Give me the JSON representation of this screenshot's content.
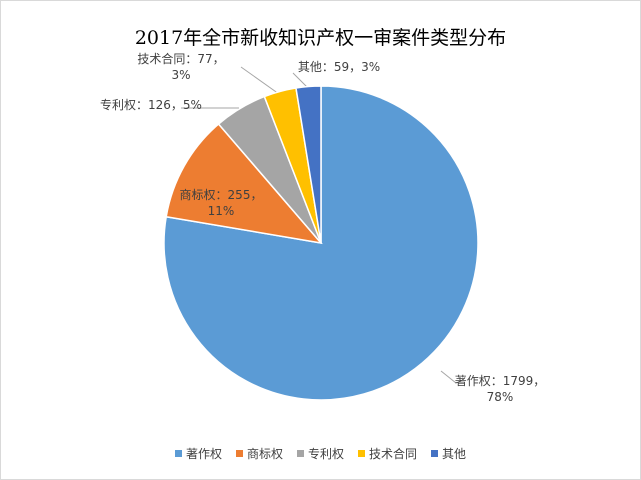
{
  "chart_data": {
    "type": "pie",
    "title": "2017年全市新收知识产权一审案件类型分布",
    "categories": [
      "著作权",
      "商标权",
      "专利权",
      "技术合同",
      "其他"
    ],
    "values": [
      1799,
      255,
      126,
      77,
      59
    ],
    "value_labels": [
      "著作权：1799，78%",
      "商标权：255，11%",
      "专利权：126，5%",
      "技术合同：77，3%",
      "其他：59，3%"
    ],
    "colors": [
      "#5b9bd5",
      "#ed7d31",
      "#a5a5a5",
      "#ffc000",
      "#4472c4"
    ],
    "legend": "bottom"
  }
}
